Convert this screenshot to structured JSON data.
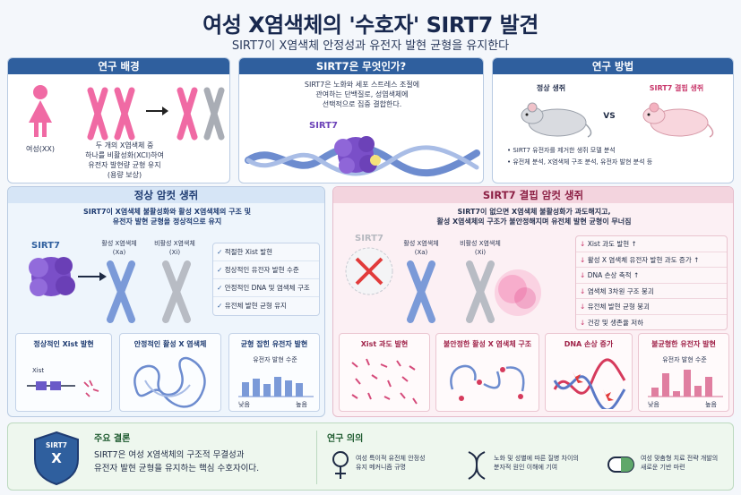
{
  "title": "여성 X염색체의 '수호자' SIRT7 발견",
  "subtitle": "SIRT7이 X염색체 안정성과 유전자 발현 균형을 유지한다",
  "background": {
    "header": "연구 배경",
    "female_label": "여성(XX)",
    "desc": [
      "두 개의 X염색체 중",
      "하나를 비활성화(XCI)하여",
      "유전자 발현량 균형 유지",
      "(용량 보상)"
    ]
  },
  "what": {
    "header": "SIRT7은 무엇인가?",
    "desc": [
      "SIRT7은 노화와 세포 스트레스 조절에",
      "관여하는 단백질로, 성염색체에",
      "선택적으로 집중 결합한다."
    ],
    "protein_label": "SIRT7"
  },
  "methods": {
    "header": "연구 방법",
    "normal_mouse": "정상 생쥐",
    "vs": "VS",
    "ko_mouse": "SIRT7 결핍 생쥐",
    "bullets": [
      "SIRT7 유전자를 제거한 생쥐 모델 분석",
      "유전체 분석, X염색체 구조 분석, 유전자 발현 분석 등"
    ]
  },
  "normal": {
    "header": "정상 암컷 생쥐",
    "desc": [
      "SIRT7이 X염색체 불활성화와 활성 X염색체의 구조 및",
      "유전자 발현 균형을 정상적으로 유지"
    ],
    "sirt7_label": "SIRT7",
    "xa_label": [
      "활성 X염색체",
      "(Xa)"
    ],
    "xi_label": [
      "비활성 X염색체",
      "(Xi)"
    ],
    "checks": [
      "적절한 Xist 발현",
      "정상적인 유전자 발현 수준",
      "안정적인 DNA 및 염색체 구조",
      "유전체 발현 균형 유지"
    ],
    "sub": [
      {
        "title": "정상적인 Xist 발현",
        "label": "Xist"
      },
      {
        "title": "안정적인 활성 X 염색체"
      },
      {
        "title": "균형 잡힌 유전자 발현",
        "level": "유전자 발현 수준",
        "low": "낮음",
        "high": "높음"
      }
    ]
  },
  "ko": {
    "header": "SIRT7 결핍 암컷 생쥐",
    "desc": [
      "SIRT7이 없으면 X염색체 불활성화가 과도해지고,",
      "활성 X염색체의 구조가 불안정해지며 유전체 발현 균형이 무너짐"
    ],
    "sirt7_label": "SIRT7",
    "xa_label": [
      "활성 X염색체",
      "(Xa)"
    ],
    "xi_label": [
      "비활성 X염색체",
      "(Xi)"
    ],
    "effects": [
      "Xist 과도 발현 ↑",
      "활성 X 염색체 유전자 발현 과도 증가 ↑",
      "DNA 손상 축적 ↑",
      "염색체 3차원 구조 붕괴",
      "유전체 발현 균형 붕괴",
      "건강 및 생존율 저하"
    ],
    "sub": [
      {
        "title": "Xist 과도 발현"
      },
      {
        "title": "불안정한 활성 X 염색체 구조"
      },
      {
        "title": "DNA 손상 증가"
      },
      {
        "title": "불균형한 유전자 발현",
        "level": "유전자 발현 수준",
        "low": "낮음",
        "high": "높음"
      }
    ]
  },
  "conclusion": {
    "header": "주요 결론",
    "shield_text": "SIRT7",
    "shield_x": "X",
    "text": [
      "SIRT7은 여성 X염색체의 구조적 무결성과",
      "유전자 발현 균형을 유지하는 핵심 수호자이다."
    ]
  },
  "significance": {
    "header": "연구 의의",
    "items": [
      {
        "icon": "female-symbol",
        "text": [
          "여성 특이적 유전체 안정성",
          "유지 메커니즘 규명"
        ]
      },
      {
        "icon": "dna-helix",
        "text": [
          "노화 및 성별에 따른 질병 차이의",
          "분자적 원인 이해에 기여"
        ]
      },
      {
        "icon": "capsule",
        "text": [
          "여성 맞춤형 치료 전략 개발의",
          "새로운 기반 마련"
        ]
      }
    ]
  },
  "colors": {
    "navy": "#2f5f9e",
    "pink": "#c8366a",
    "purple": "#7a4fc8",
    "blue_chrom": "#7b9ad8",
    "pink_chrom": "#f08ab6"
  }
}
